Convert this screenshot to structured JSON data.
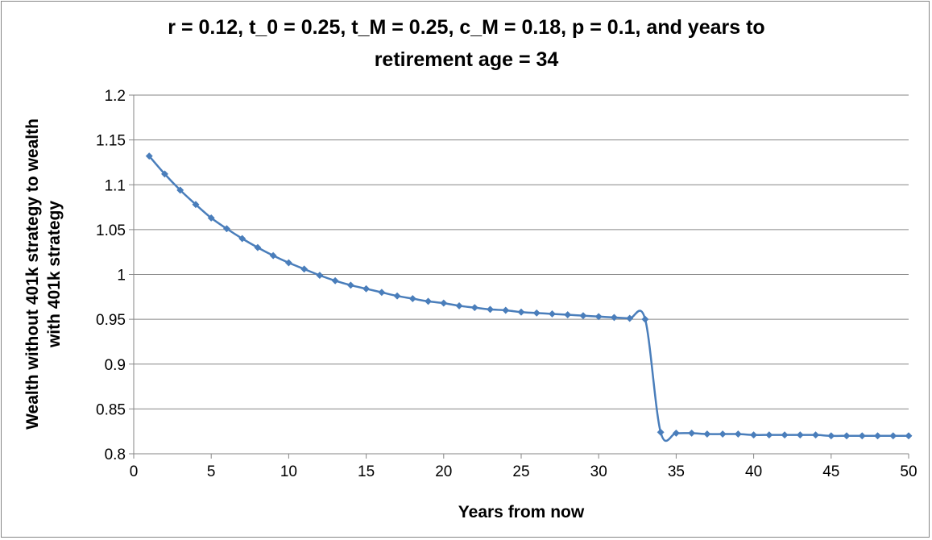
{
  "chart_data": {
    "type": "line",
    "title_lines": [
      "r = 0.12, t_0 = 0.25, t_M = 0.25, c_M = 0.18, p = 0.1, and years to",
      "retirement age = 34"
    ],
    "xlabel": "Years from now",
    "ylabel_lines": [
      "Wealth without 401k strategy to wealth",
      "with 401k strategy"
    ],
    "xlim": [
      0,
      50
    ],
    "ylim": [
      0.8,
      1.2
    ],
    "x_ticks": [
      "0",
      "5",
      "10",
      "15",
      "20",
      "25",
      "30",
      "35",
      "40",
      "45",
      "50"
    ],
    "y_ticks": [
      "0.8",
      "0.85",
      "0.9",
      "0.95",
      "1",
      "1.05",
      "1.1",
      "1.15",
      "1.2"
    ],
    "grid": "horizontal",
    "legend": "none",
    "series_color": "#4a7ebb",
    "series": [
      {
        "x": [
          1,
          2,
          3,
          4,
          5,
          6,
          7,
          8,
          9,
          10,
          11,
          12,
          13,
          14,
          15,
          16,
          17,
          18,
          19,
          20,
          21,
          22,
          23,
          24,
          25,
          26,
          27,
          28,
          29,
          30,
          31,
          32,
          33,
          34,
          35,
          36,
          37,
          38,
          39,
          40,
          41,
          42,
          43,
          44,
          45,
          46,
          47,
          48,
          49,
          50
        ],
        "values": [
          1.132,
          1.112,
          1.094,
          1.078,
          1.063,
          1.051,
          1.04,
          1.03,
          1.021,
          1.013,
          1.006,
          0.999,
          0.993,
          0.988,
          0.984,
          0.98,
          0.976,
          0.973,
          0.97,
          0.968,
          0.965,
          0.963,
          0.961,
          0.96,
          0.958,
          0.957,
          0.956,
          0.955,
          0.954,
          0.953,
          0.952,
          0.951,
          0.95,
          0.824,
          0.823,
          0.823,
          0.822,
          0.822,
          0.822,
          0.821,
          0.821,
          0.821,
          0.821,
          0.821,
          0.82,
          0.82,
          0.82,
          0.82,
          0.82,
          0.82
        ]
      }
    ]
  }
}
